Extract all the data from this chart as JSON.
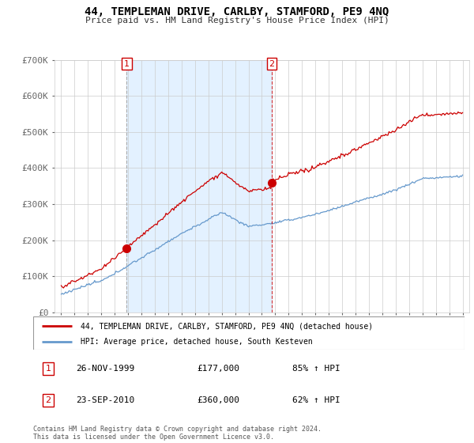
{
  "title": "44, TEMPLEMAN DRIVE, CARLBY, STAMFORD, PE9 4NQ",
  "subtitle": "Price paid vs. HM Land Registry's House Price Index (HPI)",
  "legend_line1": "44, TEMPLEMAN DRIVE, CARLBY, STAMFORD, PE9 4NQ (detached house)",
  "legend_line2": "HPI: Average price, detached house, South Kesteven",
  "transaction1_date": "26-NOV-1999",
  "transaction1_price": "£177,000",
  "transaction1_hpi": "85% ↑ HPI",
  "transaction2_date": "23-SEP-2010",
  "transaction2_price": "£360,000",
  "transaction2_hpi": "62% ↑ HPI",
  "footer": "Contains HM Land Registry data © Crown copyright and database right 2024.\nThis data is licensed under the Open Government Licence v3.0.",
  "sale1_year": 1999.9,
  "sale1_value": 177000,
  "sale2_year": 2010.73,
  "sale2_value": 360000,
  "red_color": "#cc0000",
  "blue_color": "#6699cc",
  "shade_color": "#ddeeff",
  "ylim_min": 0,
  "ylim_max": 700000,
  "xlim_min": 1994.5,
  "xlim_max": 2025.5,
  "yticks": [
    0,
    100000,
    200000,
    300000,
    400000,
    500000,
    600000,
    700000
  ],
  "ytick_labels": [
    "£0",
    "£100K",
    "£200K",
    "£300K",
    "£400K",
    "£500K",
    "£600K",
    "£700K"
  ],
  "xticks": [
    1995,
    1996,
    1997,
    1998,
    1999,
    2000,
    2001,
    2002,
    2003,
    2004,
    2005,
    2006,
    2007,
    2008,
    2009,
    2010,
    2011,
    2012,
    2013,
    2014,
    2015,
    2016,
    2017,
    2018,
    2019,
    2020,
    2021,
    2022,
    2023,
    2024,
    2025
  ]
}
